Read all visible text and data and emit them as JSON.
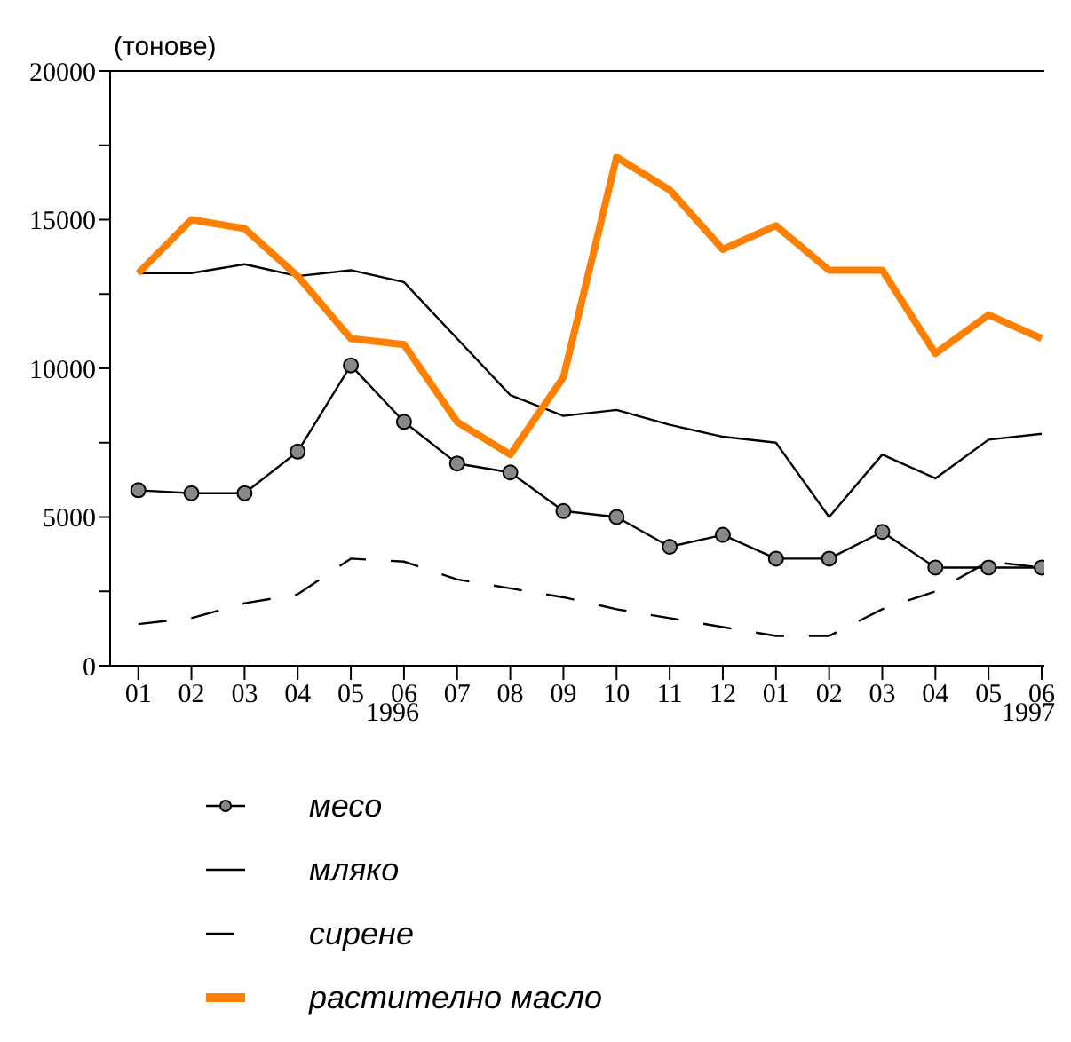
{
  "chart_data": {
    "type": "line",
    "ylabel": "(тонове)",
    "categories": [
      "01",
      "02",
      "03",
      "04",
      "05",
      "06",
      "07",
      "08",
      "09",
      "10",
      "11",
      "12",
      "01",
      "02",
      "03",
      "04",
      "05",
      "06"
    ],
    "annotations": [
      "1996",
      "1997"
    ],
    "ylim": [
      0,
      20000
    ],
    "yticks": [
      0,
      {
        "value": 2500,
        "label": null
      },
      5000,
      {
        "value": 7500,
        "label": null
      },
      10000,
      {
        "value": 12500,
        "label": null
      },
      15000,
      {
        "value": 17500,
        "label": null
      },
      20000
    ],
    "grid": false,
    "legend": "bottom",
    "series": [
      {
        "name": "месо",
        "color": "#000000",
        "marker": "circle",
        "line_style": "solid",
        "values": [
          5900,
          5800,
          5800,
          7200,
          10100,
          8200,
          6800,
          6500,
          5200,
          5000,
          4000,
          4400,
          3600,
          3600,
          4500,
          3300,
          3300,
          3300
        ]
      },
      {
        "name": "мляко",
        "color": "#000000",
        "marker": "none",
        "line_style": "solid",
        "values": [
          13200,
          13200,
          13500,
          13100,
          13300,
          12900,
          11000,
          9100,
          8400,
          8600,
          8100,
          7700,
          7500,
          5000,
          7100,
          6300,
          7600,
          7800
        ]
      },
      {
        "name": "сирене",
        "color": "#000000",
        "marker": "none",
        "line_style": "dashed",
        "values": [
          1400,
          1600,
          2100,
          2400,
          3600,
          3500,
          2900,
          2600,
          2300,
          1900,
          1600,
          1300,
          1000,
          1000,
          1900,
          2500,
          3500,
          3300
        ]
      },
      {
        "name": "растително масло",
        "color": "#ff7f00",
        "marker": "none",
        "line_style": "solid",
        "values": [
          13200,
          15000,
          14700,
          13100,
          11000,
          10800,
          8200,
          7100,
          9700,
          17100,
          16000,
          14000,
          14800,
          13300,
          13300,
          10500,
          11800,
          11000
        ]
      }
    ]
  }
}
